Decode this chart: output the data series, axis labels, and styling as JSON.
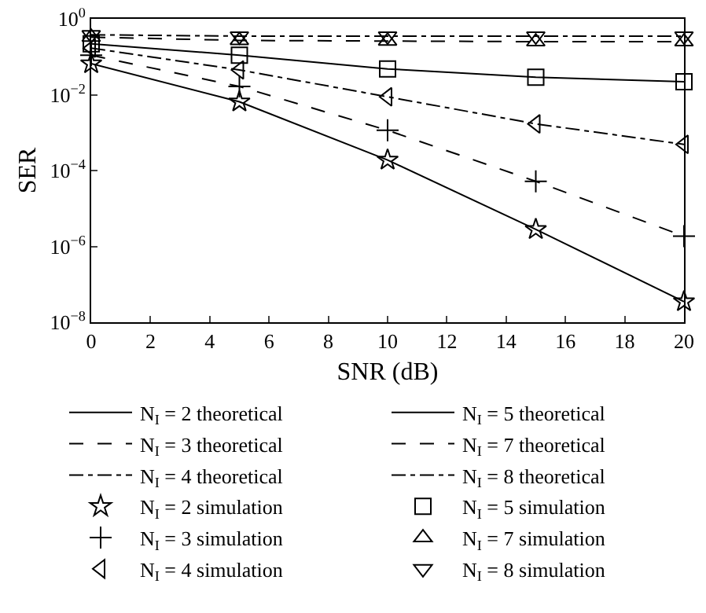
{
  "chart_data": {
    "type": "line",
    "xlabel": "SNR (dB)",
    "ylabel": "SER",
    "log": "y",
    "grid": false,
    "legend": "bottom",
    "x": [
      0,
      5,
      10,
      15,
      20
    ],
    "xlim": [
      0,
      20
    ],
    "xticks": [
      0,
      2,
      4,
      6,
      8,
      10,
      12,
      14,
      16,
      18,
      20
    ],
    "ylim": [
      1e-08,
      1
    ],
    "yticks": [
      {
        "value": 1,
        "label": "10$^{0}$"
      },
      {
        "value": 0.01,
        "label": "10$^{−2}$"
      },
      {
        "value": 0.0001,
        "label": "10$^{−4}$"
      },
      {
        "value": 1e-06,
        "label": "10$^{−6}$"
      },
      {
        "value": 1e-08,
        "label": "10$^{−8}$"
      }
    ],
    "series": [
      {
        "name": "N$_{I}$ = 2 theoretical",
        "marker": "none",
        "line_style": "solid",
        "color": "#000000",
        "values": [
          0.066,
          0.0065,
          0.00019,
          2.8e-06,
          3.5e-08
        ]
      },
      {
        "name": "N$_{I}$ = 5 theoretical",
        "marker": "none",
        "line_style": "solid",
        "color": "#000000",
        "values": [
          0.22,
          0.11,
          0.048,
          0.029,
          0.022
        ]
      },
      {
        "name": "N$_{I}$ = 3 theoretical",
        "marker": "none",
        "line_style": "dashed",
        "color": "#000000",
        "values": [
          0.11,
          0.0165,
          0.00115,
          5.2e-05,
          1.85e-06
        ]
      },
      {
        "name": "N$_{I}$ = 7 theoretical",
        "marker": "none",
        "line_style": "dashed",
        "color": "#000000",
        "values": [
          0.33,
          0.27,
          0.26,
          0.25,
          0.25
        ]
      },
      {
        "name": "N$_{I}$ = 4 theoretical",
        "marker": "none",
        "line_style": "dashdot",
        "color": "#000000",
        "values": [
          0.17,
          0.045,
          0.0088,
          0.0017,
          0.00049
        ]
      },
      {
        "name": "N$_{I}$ = 8 theoretical",
        "marker": "none",
        "line_style": "dashdot",
        "color": "#000000",
        "values": [
          0.38,
          0.35,
          0.35,
          0.35,
          0.35
        ]
      },
      {
        "name": "N$_{I}$ = 2 simulation",
        "type": "scatter",
        "marker": "star",
        "color": "#000000",
        "values": [
          0.066,
          0.0065,
          0.00019,
          2.8e-06,
          3.5e-08
        ]
      },
      {
        "name": "N$_{I}$ = 5 simulation",
        "type": "scatter",
        "marker": "square",
        "color": "#000000",
        "values": [
          0.22,
          0.11,
          0.048,
          0.029,
          0.022
        ]
      },
      {
        "name": "N$_{I}$ = 3 simulation",
        "type": "scatter",
        "marker": "cross",
        "color": "#000000",
        "values": [
          0.11,
          0.0165,
          0.00115,
          5.2e-05,
          1.85e-06
        ]
      },
      {
        "name": "N$_{I}$ = 7 simulation",
        "type": "scatter",
        "marker": "triangle",
        "color": "#000000",
        "values": [
          0.33,
          0.27,
          0.26,
          0.25,
          0.25
        ]
      },
      {
        "name": "N$_{I}$ = 4 simulation",
        "type": "scatter",
        "marker": "triangle-left",
        "color": "#000000",
        "values": [
          0.17,
          0.045,
          0.0088,
          0.0017,
          0.00049
        ]
      },
      {
        "name": "N$_{I}$ = 8 simulation",
        "type": "scatter",
        "marker": "triangle-down",
        "color": "#000000",
        "values": [
          0.38,
          0.35,
          0.35,
          0.35,
          0.35
        ]
      }
    ]
  }
}
